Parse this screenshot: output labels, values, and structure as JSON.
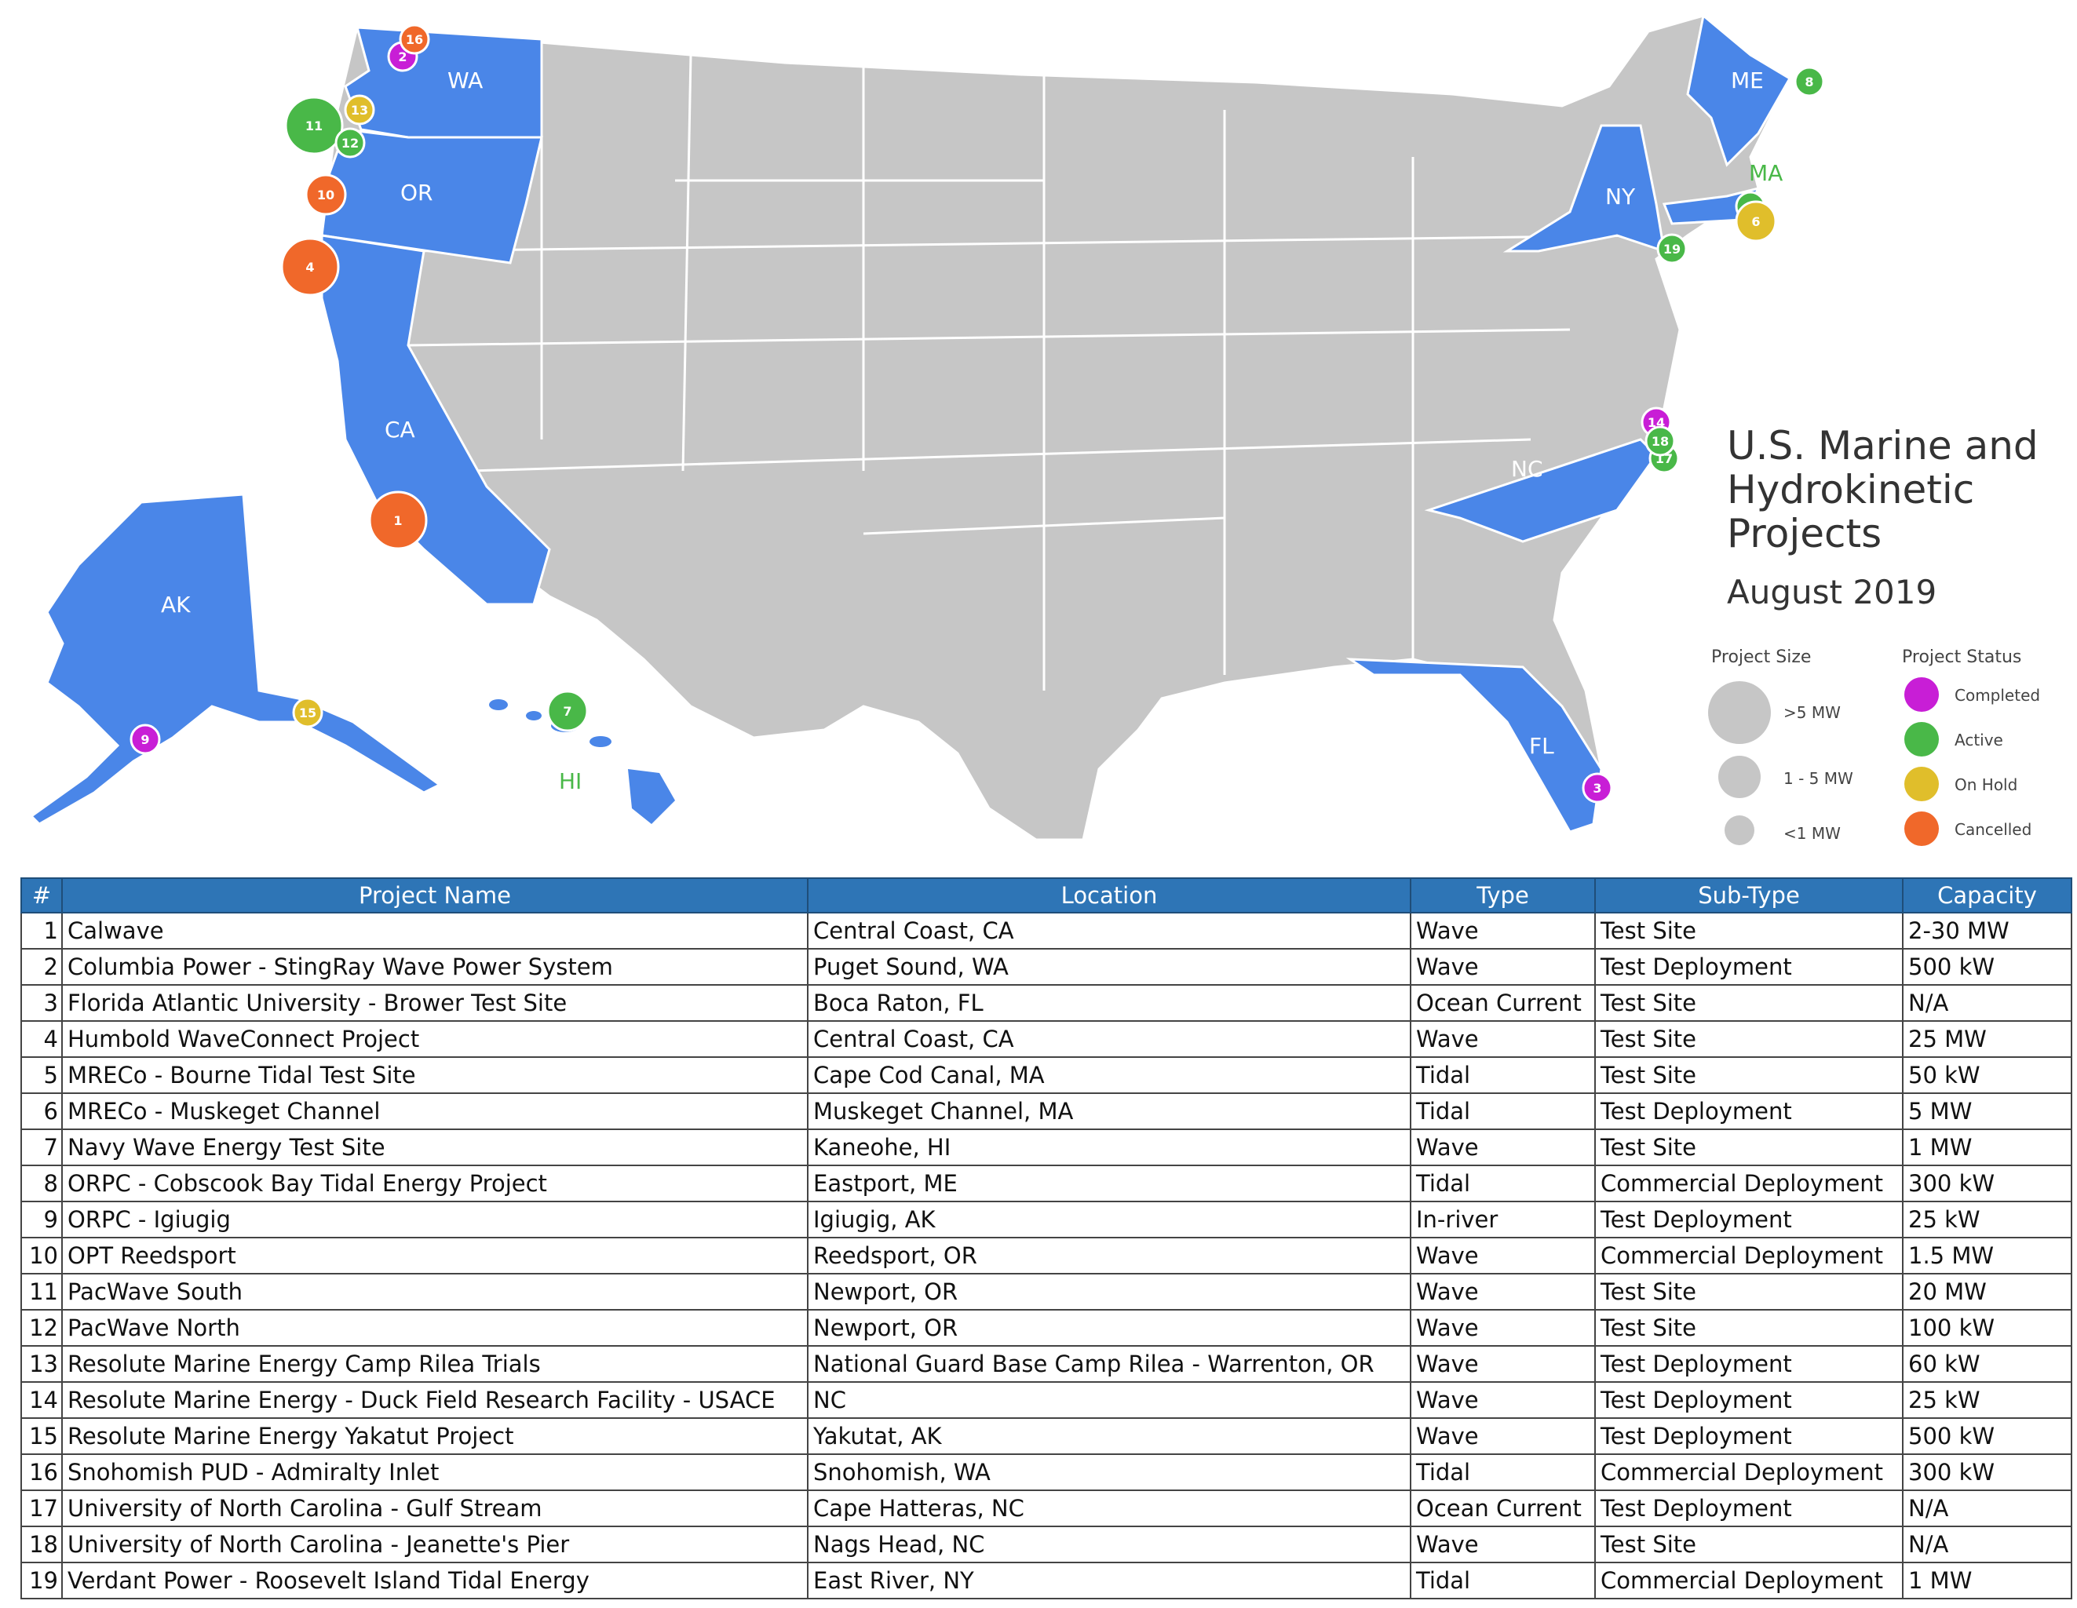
{
  "title": [
    "U.S. Marine and",
    "Hydrokinetic",
    "Projects"
  ],
  "date": "August 2019",
  "legend": {
    "size_heading": "Project Size",
    "sizes": [
      ">5 MW",
      "1 - 5 MW",
      "<1 MW"
    ],
    "status_heading": "Project Status",
    "statuses": [
      {
        "label": "Completed",
        "color": "#c81ed6"
      },
      {
        "label": "Active",
        "color": "#49b848"
      },
      {
        "label": "On Hold",
        "color": "#e0be2b"
      },
      {
        "label": "Cancelled",
        "color": "#f0682a"
      }
    ]
  },
  "colors": {
    "state_gray": "#c6c6c6",
    "state_blue": "#4a86e8",
    "border": "#ffffff",
    "header": "#2e75b6"
  },
  "state_labels": [
    "WA",
    "OR",
    "CA",
    "AK",
    "HI",
    "ME",
    "MA",
    "NY",
    "NC",
    "FL"
  ],
  "table": {
    "headers": [
      "#",
      "Project Name",
      "Location",
      "Type",
      "Sub-Type",
      "Capacity"
    ],
    "rows": [
      [
        "1",
        "Calwave",
        "Central Coast, CA",
        "Wave",
        "Test Site",
        "2-30 MW"
      ],
      [
        "2",
        "Columbia Power - StingRay Wave Power System",
        "Puget Sound, WA",
        "Wave",
        "Test Deployment",
        "500 kW"
      ],
      [
        "3",
        "Florida Atlantic University - Brower Test Site",
        "Boca Raton, FL",
        "Ocean Current",
        "Test Site",
        "N/A"
      ],
      [
        "4",
        "Humbold WaveConnect Project",
        "Central Coast, CA",
        "Wave",
        "Test Site",
        "25 MW"
      ],
      [
        "5",
        "MRECo - Bourne Tidal Test Site",
        "Cape Cod Canal, MA",
        "Tidal",
        "Test Site",
        "50 kW"
      ],
      [
        "6",
        "MRECo - Muskeget Channel",
        "Muskeget Channel, MA",
        "Tidal",
        "Test Deployment",
        "5 MW"
      ],
      [
        "7",
        "Navy Wave Energy Test Site",
        "Kaneohe, HI",
        "Wave",
        "Test Site",
        "1 MW"
      ],
      [
        "8",
        "ORPC - Cobscook Bay Tidal Energy Project",
        "Eastport, ME",
        "Tidal",
        "Commercial Deployment",
        "300 kW"
      ],
      [
        "9",
        "ORPC - Igiugig",
        "Igiugig, AK",
        "In-river",
        "Test Deployment",
        "25 kW"
      ],
      [
        "10",
        "OPT Reedsport",
        "Reedsport, OR",
        "Wave",
        "Commercial Deployment",
        "1.5 MW"
      ],
      [
        "11",
        "PacWave South",
        "Newport, OR",
        "Wave",
        "Test Site",
        "20 MW"
      ],
      [
        "12",
        "PacWave North",
        "Newport, OR",
        "Wave",
        "Test Site",
        "100 kW"
      ],
      [
        "13",
        "Resolute Marine Energy Camp Rilea Trials",
        "National Guard Base Camp Rilea - Warrenton, OR",
        "Wave",
        "Test Deployment",
        "60 kW"
      ],
      [
        "14",
        "Resolute Marine Energy - Duck Field Research Facility - USACE",
        "NC",
        "Wave",
        "Test Deployment",
        "25 kW"
      ],
      [
        "15",
        "Resolute Marine Energy Yakatut Project",
        "Yakutat, AK",
        "Wave",
        "Test Deployment",
        "500 kW"
      ],
      [
        "16",
        "Snohomish PUD - Admiralty Inlet",
        "Snohomish, WA",
        "Tidal",
        "Commercial Deployment",
        "300 kW"
      ],
      [
        "17",
        "University of North Carolina - Gulf Stream",
        "Cape Hatteras, NC",
        "Ocean Current",
        "Test Deployment",
        "N/A"
      ],
      [
        "18",
        "University of North Carolina - Jeanette's Pier",
        "Nags Head, NC",
        "Wave",
        "Test Site",
        "N/A"
      ],
      [
        "19",
        "Verdant Power - Roosevelt Island Tidal Energy",
        "East River, NY",
        "Tidal",
        "Commercial Deployment",
        "1 MW"
      ]
    ]
  },
  "markers": [
    {
      "num": "1",
      "status": "Cancelled",
      "size": ">5 MW"
    },
    {
      "num": "2",
      "status": "Completed",
      "size": "<1 MW"
    },
    {
      "num": "3",
      "status": "Completed",
      "size": "<1 MW"
    },
    {
      "num": "4",
      "status": "Cancelled",
      "size": ">5 MW"
    },
    {
      "num": "5",
      "status": "Active",
      "size": "<1 MW"
    },
    {
      "num": "6",
      "status": "On Hold",
      "size": "1 - 5 MW"
    },
    {
      "num": "7",
      "status": "Active",
      "size": "1 - 5 MW"
    },
    {
      "num": "8",
      "status": "Active",
      "size": "<1 MW"
    },
    {
      "num": "9",
      "status": "Completed",
      "size": "<1 MW"
    },
    {
      "num": "10",
      "status": "Cancelled",
      "size": "1 - 5 MW"
    },
    {
      "num": "11",
      "status": "Active",
      "size": ">5 MW"
    },
    {
      "num": "12",
      "status": "Active",
      "size": "<1 MW"
    },
    {
      "num": "13",
      "status": "On Hold",
      "size": "<1 MW"
    },
    {
      "num": "14",
      "status": "Completed",
      "size": "<1 MW"
    },
    {
      "num": "15",
      "status": "On Hold",
      "size": "<1 MW"
    },
    {
      "num": "16",
      "status": "Cancelled",
      "size": "<1 MW"
    },
    {
      "num": "17",
      "status": "Active",
      "size": "<1 MW"
    },
    {
      "num": "18",
      "status": "Active",
      "size": "<1 MW"
    },
    {
      "num": "19",
      "status": "Active",
      "size": "<1 MW"
    }
  ]
}
